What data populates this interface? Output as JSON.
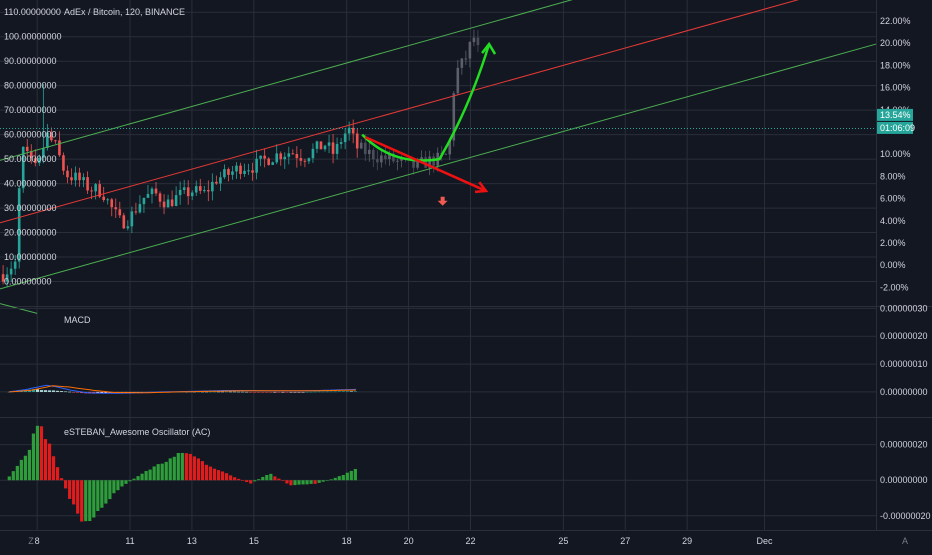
{
  "header": {
    "symbol_title": "AdEx / Bitcoin, 120, BINANCE"
  },
  "colors": {
    "background": "#131722",
    "grid": "#2a2e39",
    "text": "#d1d4dc",
    "candle_up": "#26a69a",
    "candle_down": "#ef5350",
    "channel_green": "#4caf50",
    "channel_red": "#e53935",
    "arrow_green": "#22dd22",
    "arrow_red": "#ee1111",
    "price_badge": "#26a69a",
    "macd_line": "#2962ff",
    "signal_line": "#ff6d00"
  },
  "price_badge": {
    "pct": "13.54%",
    "countdown": "01:06:09"
  },
  "footer": {
    "left_icon": "Z",
    "right_icon": "A"
  },
  "chart_data": [
    {
      "type": "candlestick",
      "title": "AdEx / Bitcoin, 120, BINANCE",
      "y_left_ticks": [
        "110.00000000",
        "100.00000000",
        "90.00000000",
        "80.00000000",
        "70.00000000",
        "60.00000000",
        "50.00000000",
        "40.00000000",
        "30.00000000",
        "20.00000000",
        "10.00000000",
        "0.00000000"
      ],
      "y_right_ticks": [
        "22.00%",
        "20.00%",
        "18.00%",
        "16.00%",
        "14.00%",
        "10.00%",
        "8.00%",
        "6.00%",
        "4.00%",
        "2.00%",
        "0.00%",
        "-2.00%"
      ],
      "ylim": [
        -10,
        115
      ],
      "x_ticks": [
        "8",
        "11",
        "13",
        "15",
        "18",
        "20",
        "22",
        "25",
        "27",
        "29",
        "Dec"
      ],
      "x_tick_days": [
        8,
        11,
        13,
        15,
        18,
        20,
        22,
        25,
        27,
        29,
        31.5
      ],
      "xlim": [
        6.8,
        35.1
      ],
      "close_path": [
        [
          6.9,
          3
        ],
        [
          7.3,
          8
        ],
        [
          7.5,
          55
        ],
        [
          7.8,
          48
        ],
        [
          8.0,
          45
        ],
        [
          8.3,
          60
        ],
        [
          8.6,
          55
        ],
        [
          8.9,
          44
        ],
        [
          9.3,
          42
        ],
        [
          9.7,
          38
        ],
        [
          10.1,
          37
        ],
        [
          10.4,
          30
        ],
        [
          10.7,
          24
        ],
        [
          11.0,
          26
        ],
        [
          11.4,
          34
        ],
        [
          11.8,
          36
        ],
        [
          12.2,
          32
        ],
        [
          12.6,
          35
        ],
        [
          13.0,
          37
        ],
        [
          13.4,
          36
        ],
        [
          13.8,
          42
        ],
        [
          14.2,
          44
        ],
        [
          14.6,
          47
        ],
        [
          15.0,
          47
        ],
        [
          15.4,
          50
        ],
        [
          15.8,
          52
        ],
        [
          16.2,
          53
        ],
        [
          16.6,
          51
        ],
        [
          17.0,
          54
        ],
        [
          17.3,
          56
        ],
        [
          17.6,
          52
        ],
        [
          17.9,
          60
        ],
        [
          18.1,
          62
        ],
        [
          18.3,
          55
        ],
        [
          18.6,
          53
        ],
        [
          19.0,
          51
        ],
        [
          19.4,
          50
        ],
        [
          19.8,
          48
        ],
        [
          20.2,
          47
        ],
        [
          20.6,
          49
        ],
        [
          21.0,
          50
        ],
        [
          21.3,
          52
        ],
        [
          21.5,
          85
        ],
        [
          21.8,
          90
        ],
        [
          22.1,
          100
        ],
        [
          22.3,
          92
        ]
      ],
      "ghost_from_day": 18.4,
      "channel": {
        "upper_green": [
          [
            6.8,
            49.5
          ],
          [
            35.1,
            150
          ]
        ],
        "middle_red": [
          [
            6.8,
            24
          ],
          [
            35.1,
            124
          ]
        ],
        "lower_green": [
          [
            6.8,
            -3
          ],
          [
            35.1,
            97
          ]
        ],
        "lower_green_stub": [
          [
            6.8,
            -9
          ],
          [
            8.0,
            -13
          ]
        ]
      },
      "annotations": {
        "green_curve": [
          [
            18.5,
            60
          ],
          [
            19.5,
            47
          ],
          [
            21.0,
            50
          ],
          [
            22.0,
            72
          ],
          [
            22.6,
            97
          ]
        ],
        "red_arrow": [
          [
            18.6,
            59
          ],
          [
            22.5,
            37
          ]
        ],
        "down_marker": [
          21.1,
          33
        ]
      },
      "last_price_pct": 13.54
    },
    {
      "type": "bar+line",
      "title": "MACD",
      "y_right_ticks": [
        "0.00000030",
        "0.00000020",
        "0.00000010",
        "0.00000000"
      ],
      "ylim": [
        -9e-08,
        3.05e-07
      ],
      "hist_path": [
        [
          7.1,
          5e-10
        ],
        [
          7.6,
          8e-09
        ],
        [
          7.8,
          9e-09
        ],
        [
          8.3,
          7e-09
        ],
        [
          8.6,
          4e-09
        ],
        [
          9.1,
          5e-10
        ],
        [
          9.6,
          -6e-09
        ],
        [
          10.1,
          -6e-09
        ],
        [
          10.6,
          -5e-09
        ],
        [
          11.0,
          -2e-09
        ],
        [
          11.8,
          0
        ],
        [
          12.6,
          8e-10
        ],
        [
          13.4,
          1e-09
        ],
        [
          14.4,
          1e-09
        ],
        [
          15.2,
          -6e-10
        ],
        [
          16.1,
          -1e-09
        ],
        [
          17.0,
          8e-10
        ],
        [
          18.0,
          2e-09
        ]
      ],
      "macd_path": [
        [
          7.1,
          5e-10
        ],
        [
          7.6,
          8e-09
        ],
        [
          8.3,
          2.4e-08
        ],
        [
          8.6,
          1.9e-08
        ],
        [
          9.1,
          6e-09
        ],
        [
          9.6,
          -3e-09
        ],
        [
          10.2,
          -5e-09
        ],
        [
          11.0,
          -4e-09
        ],
        [
          12.0,
          0
        ],
        [
          13.0,
          2e-09
        ],
        [
          14.0,
          5e-09
        ],
        [
          15.0,
          5e-09
        ],
        [
          16.0,
          4e-09
        ],
        [
          17.0,
          5e-09
        ],
        [
          17.9,
          8e-09
        ],
        [
          18.3,
          9e-09
        ]
      ],
      "signal_path": [
        [
          7.1,
          0
        ],
        [
          7.8,
          6e-09
        ],
        [
          8.5,
          2.2e-08
        ],
        [
          9.0,
          1.8e-08
        ],
        [
          9.8,
          6e-09
        ],
        [
          10.5,
          -2e-09
        ],
        [
          11.5,
          -3e-09
        ],
        [
          12.5,
          0
        ],
        [
          13.5,
          2e-09
        ],
        [
          14.5,
          4e-09
        ],
        [
          15.5,
          4e-09
        ],
        [
          16.5,
          4e-09
        ],
        [
          17.5,
          5e-09
        ],
        [
          18.3,
          7e-09
        ]
      ]
    },
    {
      "type": "bar",
      "title": "eSTEBAN_Awesome Oscillator (AC)",
      "y_right_ticks": [
        "0.00000020",
        "0.00000000",
        "-0.00000020"
      ],
      "ylim": [
        -2.8e-07,
        3.5e-07
      ],
      "bars_path": [
        [
          7.1,
          2e-08
        ],
        [
          7.7,
          1.5e-07
        ],
        [
          8.0,
          3.2e-07
        ],
        [
          8.3,
          2.4e-07
        ],
        [
          8.7,
          5e-08
        ],
        [
          9.1,
          -1.2e-07
        ],
        [
          9.5,
          -2.7e-07
        ],
        [
          10.0,
          -1.6e-07
        ],
        [
          10.7,
          -4e-08
        ],
        [
          11.5,
          5e-08
        ],
        [
          12.3,
          1.2e-07
        ],
        [
          12.8,
          1.6e-07
        ],
        [
          13.5,
          9e-08
        ],
        [
          14.2,
          3e-08
        ],
        [
          14.9,
          -2e-08
        ],
        [
          15.5,
          4e-08
        ],
        [
          16.2,
          -3e-08
        ],
        [
          17.0,
          -2e-08
        ],
        [
          17.6,
          1e-08
        ],
        [
          18.0,
          4e-08
        ],
        [
          18.3,
          6e-08
        ]
      ]
    }
  ]
}
